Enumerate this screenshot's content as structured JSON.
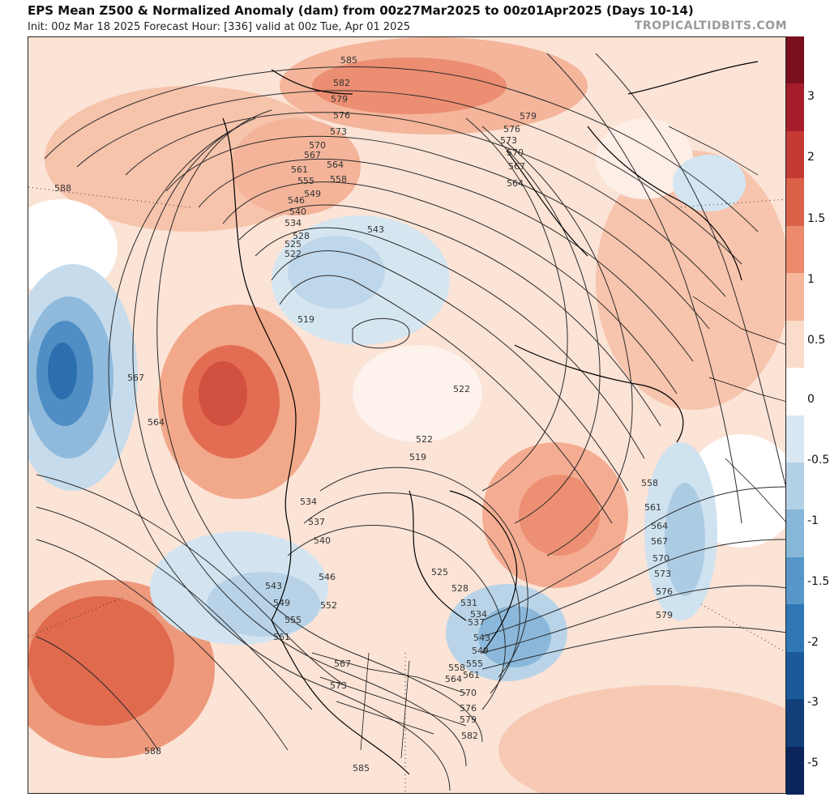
{
  "header": {
    "title": "EPS Mean Z500 & Normalized Anomaly (dam) from 00z27Mar2025 to 00z01Apr2025 (Days 10-14)",
    "subtitle": "Init: 00z Mar 18 2025   Forecast Hour: [336]   valid at 00z Tue, Apr 01 2025",
    "brand": "TROPICALTIDBITS.COM"
  },
  "colorbar": {
    "labels": [
      "3",
      "2",
      "1.5",
      "1",
      "0.5",
      "0",
      "-0.5",
      "-1",
      "-1.5",
      "-2",
      "-3",
      "-5"
    ],
    "colors": [
      "#7a0f1e",
      "#a51c2a",
      "#c63a36",
      "#dc6149",
      "#ec8a6b",
      "#f6b79c",
      "#fbdccb",
      "#ffffff",
      "#d8e7f2",
      "#b3d1e7",
      "#87b6d9",
      "#5796c7",
      "#2f76b5",
      "#1b5a99",
      "#123f7a",
      "#0b2459"
    ]
  },
  "contours": {
    "labels": [
      "585",
      "582",
      "579",
      "576",
      "573",
      "570",
      "567",
      "564",
      "561",
      "558",
      "555",
      "549",
      "546",
      "540",
      "534",
      "528",
      "525",
      "522",
      "519",
      "543",
      "522",
      "588",
      "567",
      "564",
      "588",
      "534",
      "537",
      "540",
      "543",
      "546",
      "549",
      "552",
      "555",
      "561",
      "567",
      "573",
      "525",
      "528",
      "531",
      "534",
      "537",
      "543",
      "549",
      "555",
      "558",
      "561",
      "564",
      "570",
      "576",
      "579",
      "582",
      "585",
      "579",
      "576",
      "573",
      "570",
      "567",
      "564",
      "561",
      "558",
      "579",
      "576",
      "573",
      "570",
      "567",
      "564",
      "522",
      "519"
    ],
    "colors": {
      "line": "#2b2b2b",
      "coast": "#000000"
    }
  }
}
